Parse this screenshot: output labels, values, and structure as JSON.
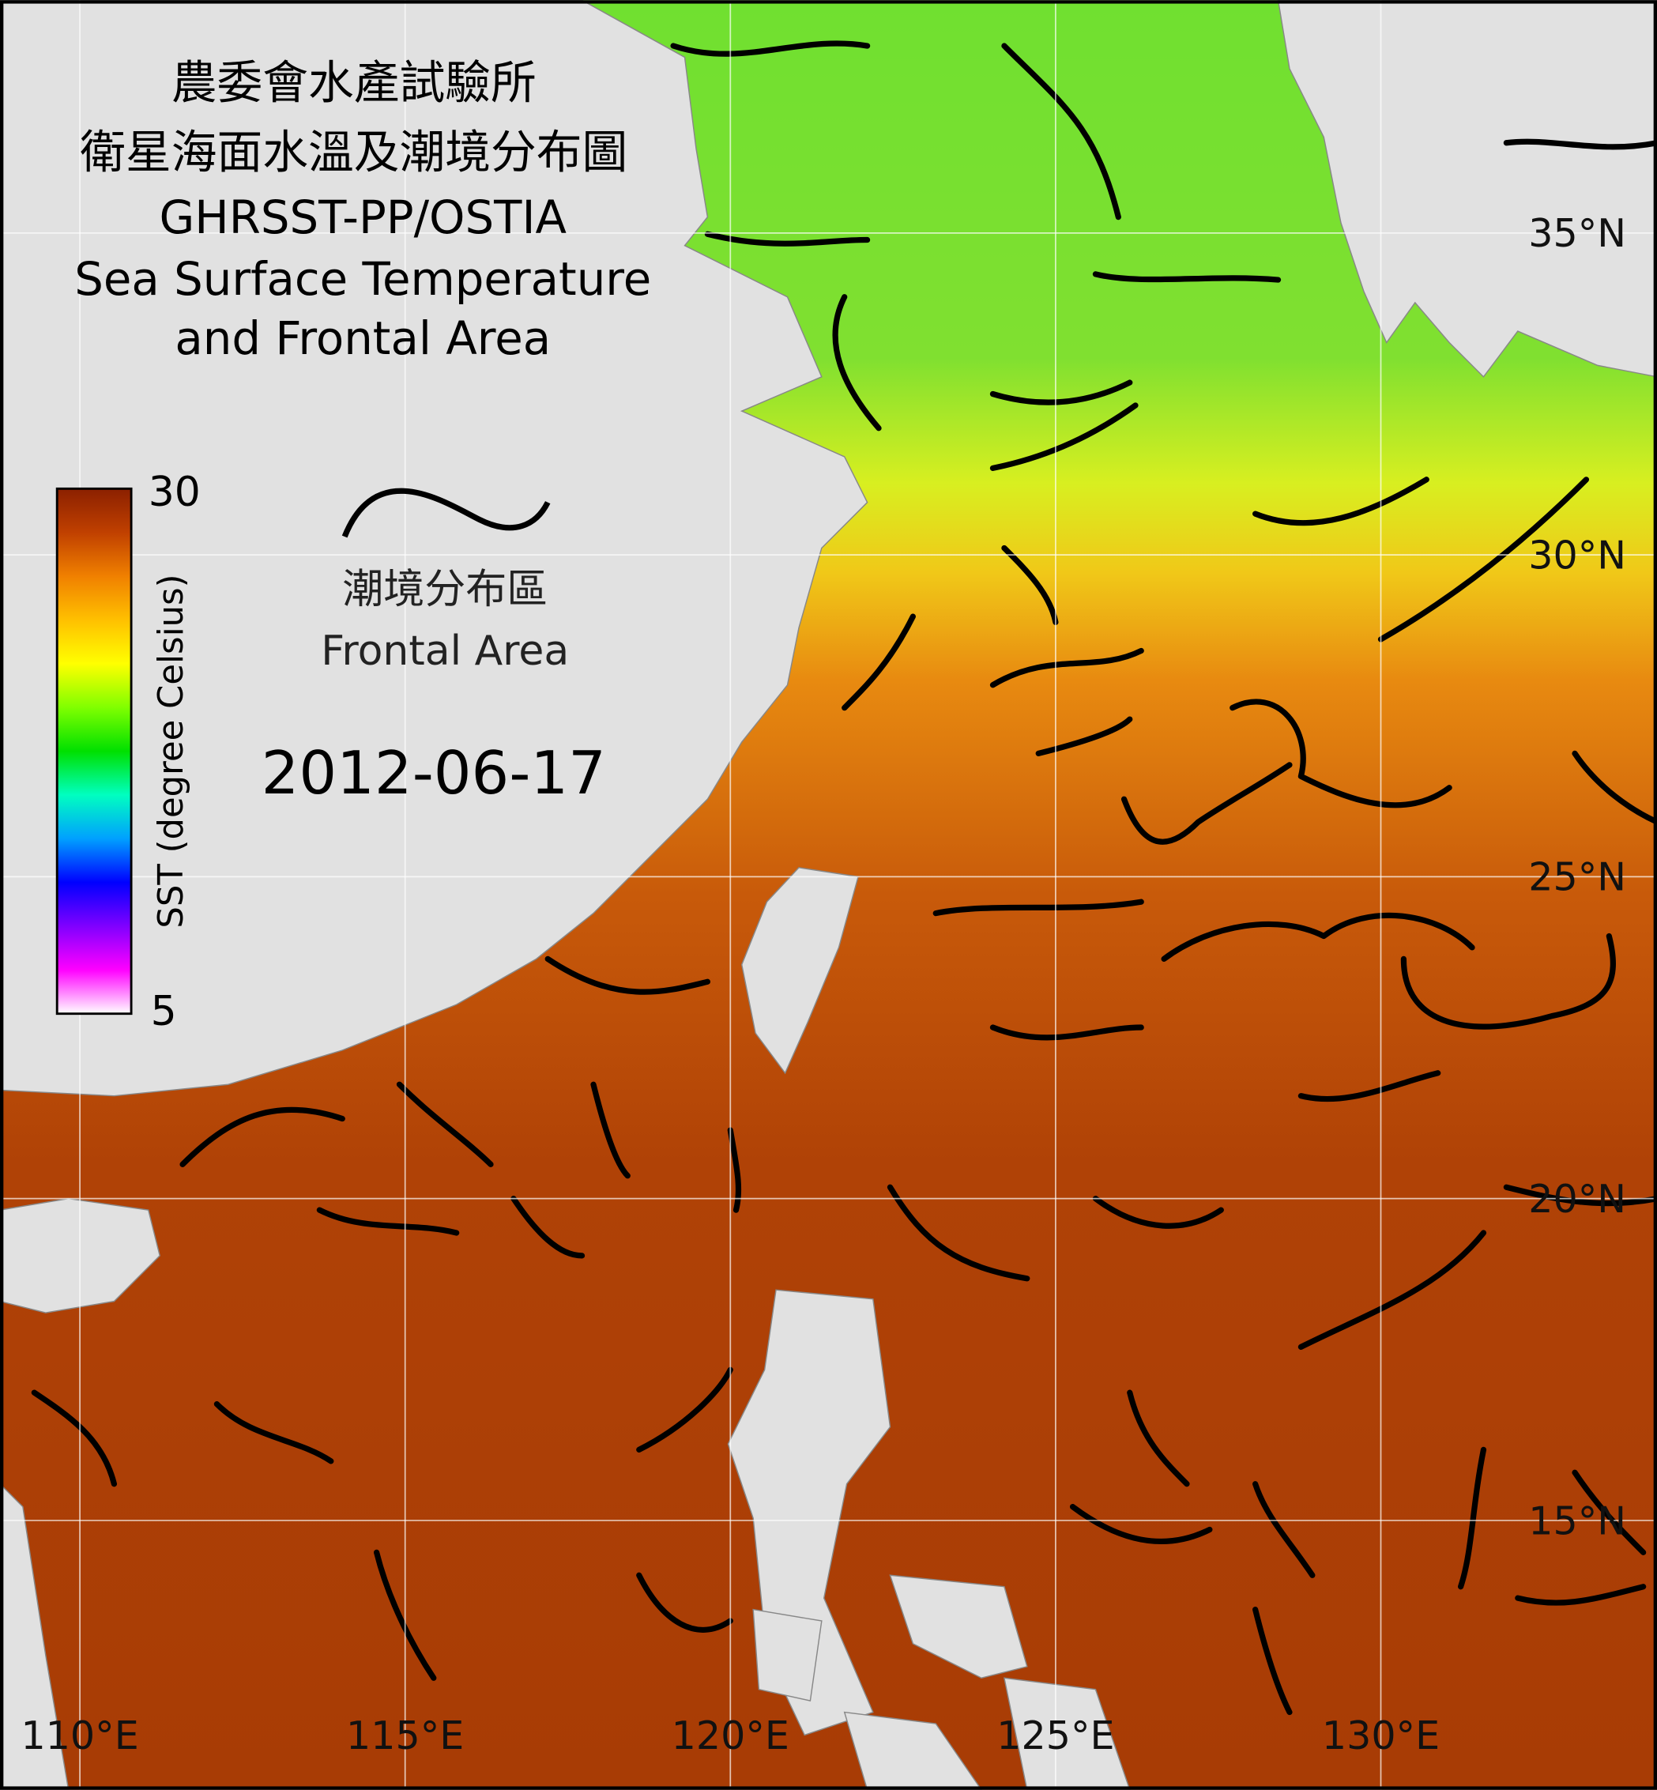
{
  "header": {
    "title_lines": [
      "農委會水產試驗所",
      "衛星海面水溫及潮境分布圖",
      "GHRSST-PP/OSTIA",
      "Sea Surface Temperature",
      "and Frontal Area"
    ]
  },
  "colorbar": {
    "label": "SST (degree Celsius)",
    "min": 5,
    "max": 30,
    "colors": [
      "#ffffff",
      "#ff00ff",
      "#8000ff",
      "#0000ff",
      "#00a0ff",
      "#00ffc0",
      "#00e000",
      "#80ff00",
      "#ffff00",
      "#ffc000",
      "#f08000",
      "#c04000",
      "#8b2000"
    ]
  },
  "legend": {
    "label_zh": "潮境分布區",
    "label_en": "Frontal Area"
  },
  "date": "2012-06-17",
  "lat_ticks": [
    {
      "value": 35,
      "label": "35°N"
    },
    {
      "value": 30,
      "label": "30°N"
    },
    {
      "value": 25,
      "label": "25°N"
    },
    {
      "value": 20,
      "label": "20°N"
    },
    {
      "value": 15,
      "label": "15°N"
    }
  ],
  "lon_ticks": [
    {
      "value": 110,
      "label": "110°E"
    },
    {
      "value": 115,
      "label": "115°E"
    },
    {
      "value": 120,
      "label": "120°E"
    },
    {
      "value": 125,
      "label": "125°E"
    },
    {
      "value": 130,
      "label": "130°E"
    }
  ]
}
